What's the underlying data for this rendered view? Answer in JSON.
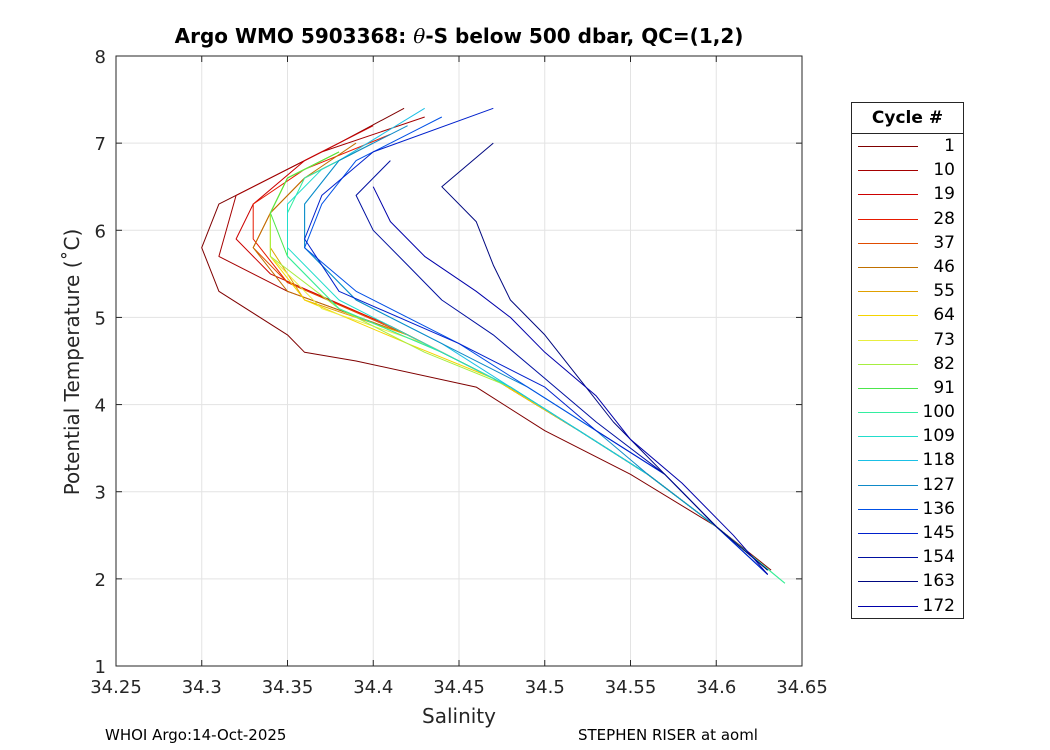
{
  "title": {
    "prefix": "Argo WMO 5903368: ",
    "symbol": "θ",
    "suffix": "-S below 500 dbar,  QC=(1,2)"
  },
  "footer": {
    "left": "WHOI Argo:14-Oct-2025",
    "right": "STEPHEN RISER at aoml"
  },
  "chart_data": {
    "type": "line",
    "title": "Argo WMO 5903368: θ-S below 500 dbar,  QC=(1,2)",
    "xlabel": "Salinity",
    "ylabel": "Potential Temperature (˚C)",
    "xlim": [
      34.25,
      34.65
    ],
    "ylim": [
      1,
      8
    ],
    "xticks": [
      "34.25",
      "34.3",
      "34.35",
      "34.4",
      "34.45",
      "34.5",
      "34.55",
      "34.6",
      "34.65"
    ],
    "yticks": [
      "1",
      "2",
      "3",
      "4",
      "5",
      "6",
      "7",
      "8"
    ],
    "grid": true,
    "legend": {
      "title": "Cycle #",
      "placement": "outside-right",
      "entries": [
        {
          "label": "1",
          "color": "#7f0000"
        },
        {
          "label": "10",
          "color": "#a50000"
        },
        {
          "label": "19",
          "color": "#cc0000"
        },
        {
          "label": "28",
          "color": "#e61a00"
        },
        {
          "label": "37",
          "color": "#e04c00"
        },
        {
          "label": "46",
          "color": "#c07000"
        },
        {
          "label": "55",
          "color": "#e0a000"
        },
        {
          "label": "64",
          "color": "#f5d400"
        },
        {
          "label": "73",
          "color": "#e8ee40"
        },
        {
          "label": "82",
          "color": "#a6ee40"
        },
        {
          "label": "91",
          "color": "#4ce64c"
        },
        {
          "label": "100",
          "color": "#33eea0"
        },
        {
          "label": "109",
          "color": "#22ddcc"
        },
        {
          "label": "118",
          "color": "#1ac0e6"
        },
        {
          "label": "127",
          "color": "#0f8ac8"
        },
        {
          "label": "136",
          "color": "#0050e6"
        },
        {
          "label": "145",
          "color": "#0020cc"
        },
        {
          "label": "154",
          "color": "#0010a0"
        },
        {
          "label": "163",
          "color": "#000880"
        },
        {
          "label": "172",
          "color": "#0000aa"
        }
      ]
    },
    "series": [
      {
        "name": "1",
        "color": "#7f0000",
        "salinity": [
          34.418,
          34.38,
          34.31,
          34.3,
          34.31,
          34.35,
          34.36,
          34.39,
          34.46,
          34.5,
          34.55,
          34.6,
          34.632
        ],
        "theta": [
          7.4,
          7.0,
          6.3,
          5.8,
          5.3,
          4.8,
          4.6,
          4.5,
          4.2,
          3.7,
          3.2,
          2.6,
          2.1
        ]
      },
      {
        "name": "10",
        "color": "#a50000",
        "salinity": [
          34.43,
          34.37,
          34.32,
          34.31,
          34.35,
          34.42,
          34.47,
          34.52,
          34.56,
          34.6,
          34.63
        ],
        "theta": [
          7.3,
          6.9,
          6.4,
          5.7,
          5.3,
          4.8,
          4.3,
          3.7,
          3.2,
          2.6,
          2.1
        ]
      },
      {
        "name": "19",
        "color": "#cc0000",
        "salinity": [
          34.4,
          34.36,
          34.33,
          34.32,
          34.34,
          34.41,
          34.47,
          34.52,
          34.56,
          34.6,
          34.63
        ],
        "theta": [
          7.2,
          6.8,
          6.3,
          5.9,
          5.5,
          4.9,
          4.3,
          3.7,
          3.2,
          2.6,
          2.1
        ]
      },
      {
        "name": "28",
        "color": "#e61a00",
        "salinity": [
          34.41,
          34.36,
          34.33,
          34.33,
          34.35,
          34.41,
          34.47,
          34.52,
          34.56,
          34.6,
          34.63
        ],
        "theta": [
          7.1,
          6.7,
          6.3,
          5.9,
          5.4,
          4.9,
          4.3,
          3.7,
          3.2,
          2.6,
          2.1
        ]
      },
      {
        "name": "37",
        "color": "#e04c00",
        "salinity": [
          34.4,
          34.36,
          34.34,
          34.33,
          34.35,
          34.42,
          34.47,
          34.52,
          34.56,
          34.6,
          34.63
        ],
        "theta": [
          7.0,
          6.6,
          6.2,
          5.8,
          5.4,
          4.8,
          4.3,
          3.7,
          3.2,
          2.6,
          2.1
        ]
      },
      {
        "name": "46",
        "color": "#c07000",
        "salinity": [
          34.39,
          34.36,
          34.34,
          34.33,
          34.35,
          34.42,
          34.47,
          34.52,
          34.56,
          34.6,
          34.63
        ],
        "theta": [
          7.0,
          6.6,
          6.2,
          5.8,
          5.3,
          4.8,
          4.3,
          3.7,
          3.2,
          2.6,
          2.1
        ]
      },
      {
        "name": "55",
        "color": "#e0a000",
        "salinity": [
          34.38,
          34.35,
          34.34,
          34.34,
          34.36,
          34.42,
          34.47,
          34.52,
          34.56,
          34.6,
          34.63
        ],
        "theta": [
          6.9,
          6.6,
          6.2,
          5.8,
          5.2,
          4.8,
          4.3,
          3.7,
          3.2,
          2.6,
          2.1
        ]
      },
      {
        "name": "64",
        "color": "#f5d400",
        "salinity": [
          34.38,
          34.35,
          34.34,
          34.34,
          34.36,
          34.42,
          34.47,
          34.52,
          34.56,
          34.6,
          34.63
        ],
        "theta": [
          6.9,
          6.6,
          6.2,
          5.7,
          5.2,
          4.7,
          4.3,
          3.7,
          3.2,
          2.6,
          2.1
        ]
      },
      {
        "name": "73",
        "color": "#e8ee40",
        "salinity": [
          34.38,
          34.35,
          34.34,
          34.34,
          34.37,
          34.43,
          34.48,
          34.52,
          34.56,
          34.6,
          34.63
        ],
        "theta": [
          6.9,
          6.6,
          6.2,
          5.7,
          5.1,
          4.7,
          4.2,
          3.7,
          3.2,
          2.6,
          2.1
        ]
      },
      {
        "name": "82",
        "color": "#a6ee40",
        "salinity": [
          34.38,
          34.35,
          34.34,
          34.34,
          34.38,
          34.43,
          34.48,
          34.52,
          34.56,
          34.6,
          34.63
        ],
        "theta": [
          6.9,
          6.6,
          6.2,
          5.7,
          5.1,
          4.6,
          4.2,
          3.7,
          3.2,
          2.6,
          2.1
        ]
      },
      {
        "name": "91",
        "color": "#4ce64c",
        "salinity": [
          34.38,
          34.35,
          34.34,
          34.35,
          34.38,
          34.44,
          34.48,
          34.52,
          34.56,
          34.6,
          34.64
        ],
        "theta": [
          6.9,
          6.6,
          6.2,
          5.7,
          5.1,
          4.6,
          4.2,
          3.7,
          3.2,
          2.6,
          1.95
        ]
      },
      {
        "name": "100",
        "color": "#33eea0",
        "salinity": [
          34.39,
          34.36,
          34.35,
          34.35,
          34.38,
          34.44,
          34.48,
          34.52,
          34.56,
          34.6,
          34.64
        ],
        "theta": [
          6.9,
          6.6,
          6.2,
          5.7,
          5.1,
          4.6,
          4.2,
          3.7,
          3.2,
          2.6,
          1.95
        ]
      },
      {
        "name": "109",
        "color": "#22ddcc",
        "salinity": [
          34.4,
          34.37,
          34.35,
          34.35,
          34.38,
          34.44,
          34.48,
          34.52,
          34.56,
          34.6,
          34.63
        ],
        "theta": [
          7.0,
          6.7,
          6.3,
          5.8,
          5.2,
          4.6,
          4.2,
          3.7,
          3.2,
          2.6,
          2.1
        ]
      },
      {
        "name": "118",
        "color": "#1ac0e6",
        "salinity": [
          34.43,
          34.38,
          34.36,
          34.36,
          34.39,
          34.44,
          34.48,
          34.52,
          34.56,
          34.6,
          34.63
        ],
        "theta": [
          7.4,
          6.8,
          6.3,
          5.8,
          5.2,
          4.7,
          4.2,
          3.7,
          3.2,
          2.6,
          2.05
        ]
      },
      {
        "name": "127",
        "color": "#0f8ac8",
        "salinity": [
          34.42,
          34.38,
          34.36,
          34.36,
          34.39,
          34.44,
          34.49,
          34.53,
          34.56,
          34.6,
          34.63
        ],
        "theta": [
          7.2,
          6.8,
          6.3,
          5.8,
          5.2,
          4.7,
          4.2,
          3.7,
          3.2,
          2.6,
          2.05
        ]
      },
      {
        "name": "136",
        "color": "#0050e6",
        "salinity": [
          34.44,
          34.39,
          34.37,
          34.36,
          34.39,
          34.45,
          34.49,
          34.53,
          34.57,
          34.6,
          34.63
        ],
        "theta": [
          7.3,
          6.8,
          6.3,
          5.8,
          5.3,
          4.7,
          4.2,
          3.7,
          3.2,
          2.6,
          2.05
        ]
      },
      {
        "name": "145",
        "color": "#0020cc",
        "salinity": [
          34.47,
          34.4,
          34.37,
          34.36,
          34.38,
          34.45,
          34.5,
          34.53,
          34.57,
          34.6,
          34.63
        ],
        "theta": [
          7.4,
          6.9,
          6.4,
          5.9,
          5.3,
          4.7,
          4.2,
          3.7,
          3.2,
          2.6,
          2.05
        ]
      },
      {
        "name": "154",
        "color": "#0010a0",
        "salinity": [
          34.41,
          34.39,
          34.4,
          34.42,
          34.44,
          34.47,
          34.5,
          34.53,
          34.57,
          34.6,
          34.63
        ],
        "theta": [
          6.8,
          6.4,
          6.0,
          5.6,
          5.2,
          4.8,
          4.3,
          3.8,
          3.2,
          2.6,
          2.1
        ]
      },
      {
        "name": "163",
        "color": "#000880",
        "salinity": [
          34.47,
          34.44,
          34.46,
          34.47,
          34.48,
          34.5,
          34.52,
          34.54,
          34.57,
          34.6,
          34.63
        ],
        "theta": [
          7.0,
          6.5,
          6.1,
          5.6,
          5.2,
          4.8,
          4.3,
          3.8,
          3.2,
          2.6,
          2.1
        ]
      },
      {
        "name": "172",
        "color": "#0000aa",
        "salinity": [
          34.4,
          34.41,
          34.43,
          34.46,
          34.48,
          34.5,
          34.53,
          34.55,
          34.58,
          34.61,
          34.63
        ],
        "theta": [
          6.5,
          6.1,
          5.7,
          5.3,
          5.0,
          4.6,
          4.1,
          3.6,
          3.1,
          2.5,
          2.05
        ]
      }
    ]
  }
}
